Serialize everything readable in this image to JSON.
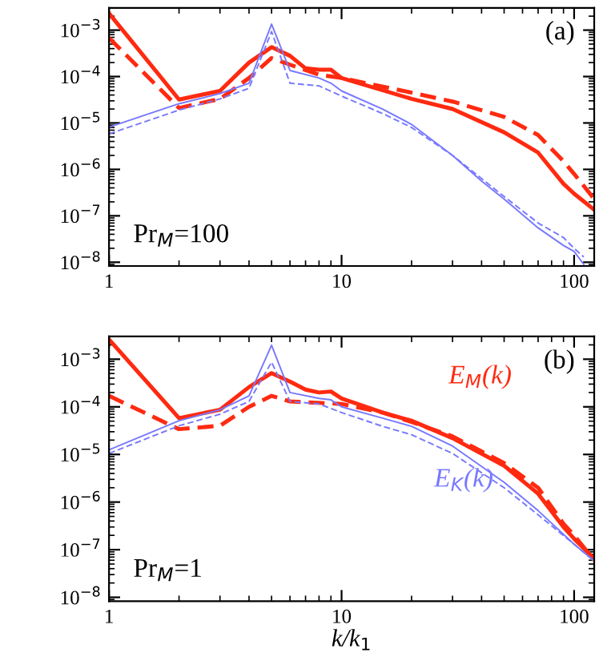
{
  "chart_data": [
    {
      "type": "line",
      "log": "xy",
      "xlim": [
        1,
        122
      ],
      "ylim": [
        8.3e-09,
        0.003
      ],
      "xticks": [
        1,
        10,
        100
      ],
      "yticks": [
        {
          "value": 1e-08,
          "label": "10$^{−8}$"
        },
        {
          "value": 1e-07,
          "label": "10$^{−7}$"
        },
        {
          "value": 1e-06,
          "label": "10$^{−6}$"
        },
        {
          "value": 1e-05,
          "label": "10$^{−5}$"
        },
        {
          "value": 0.0001,
          "label": "10$^{−4}$"
        },
        {
          "value": 0.001,
          "label": "10$^{−3}$"
        }
      ],
      "annotations": [
        "(a)",
        "Pr$_{M}$=100"
      ],
      "series": [
        {
          "color": "#ff2a10",
          "line_style": "solid",
          "x": [
            1,
            2,
            3,
            4,
            5,
            6,
            7,
            8,
            9,
            10,
            20,
            30,
            50,
            70,
            90,
            100,
            122
          ],
          "values": [
            0.0023,
            3.2e-05,
            4.9e-05,
            0.0002,
            0.00043,
            0.00028,
            0.00015,
            0.00014,
            0.00014,
            9.3e-05,
            3.3e-05,
            2e-05,
            6.3e-06,
            2.3e-06,
            4.9e-07,
            3e-07,
            1.35e-07
          ]
        },
        {
          "color": "#ff2a10",
          "line_style": "dashed",
          "x": [
            1,
            2,
            3,
            4,
            5,
            6,
            8,
            10,
            20,
            30,
            50,
            70,
            90,
            100,
            122
          ],
          "values": [
            0.00068,
            2.1e-05,
            3.3e-05,
            9.3e-05,
            0.00025,
            0.00018,
            0.00011,
            9.3e-05,
            4.5e-05,
            2.9e-05,
            1.35e-05,
            5.5e-06,
            1.5e-06,
            8e-07,
            2.3e-07
          ]
        },
        {
          "color": "#7878ff",
          "line_style": "solid",
          "x": [
            1,
            2,
            3,
            4,
            5,
            6,
            8,
            9,
            10,
            15,
            20,
            30,
            40,
            50,
            70,
            90,
            100,
            110
          ],
          "values": [
            8.1e-06,
            2.6e-05,
            4.3e-05,
            7.2e-05,
            0.00135,
            0.000135,
            9.3e-05,
            7.2e-05,
            4.9e-05,
            2e-05,
            9.3e-06,
            2e-06,
            5.6e-07,
            2.3e-07,
            5.5e-08,
            2.3e-08,
            1.7e-08,
            9e-09
          ]
        },
        {
          "color": "#7878ff",
          "line_style": "dashed",
          "x": [
            1,
            2,
            3,
            4,
            5,
            6,
            8,
            10,
            15,
            20,
            30,
            50,
            70,
            90,
            100,
            110
          ],
          "values": [
            5.8e-06,
            1.9e-05,
            3.3e-05,
            5.6e-05,
            0.00093,
            7.2e-05,
            6.3e-05,
            3.8e-05,
            1.6e-05,
            8e-06,
            2e-06,
            2.6e-07,
            7e-08,
            3.4e-08,
            2e-08,
            1.3e-08
          ]
        }
      ]
    },
    {
      "type": "line",
      "log": "xy",
      "xlim": [
        1,
        122
      ],
      "ylim": [
        8.3e-09,
        0.003
      ],
      "xticks": [
        1,
        10,
        100
      ],
      "xlabel": "k/k$_{1}$",
      "yticks": [
        {
          "value": 1e-08,
          "label": "10$^{−8}$"
        },
        {
          "value": 1e-07,
          "label": "10$^{−7}$"
        },
        {
          "value": 1e-06,
          "label": "10$^{−6}$"
        },
        {
          "value": 1e-05,
          "label": "10$^{−5}$"
        },
        {
          "value": 0.0001,
          "label": "10$^{−4}$"
        },
        {
          "value": 0.001,
          "label": "10$^{−3}$"
        }
      ],
      "annotations": [
        "(b)",
        "Pr$_{M}$=1"
      ],
      "series": [
        {
          "name": "E$_{M}$(k)",
          "color": "#ff2a10",
          "line_style": "solid",
          "x": [
            1,
            2,
            3,
            4,
            5,
            6,
            7,
            8,
            9,
            10,
            15,
            20,
            30,
            50,
            70,
            90,
            100,
            122
          ],
          "values": [
            0.0026,
            5.8e-05,
            8.7e-05,
            0.00026,
            0.00051,
            0.00034,
            0.00023,
            0.0002,
            0.00021,
            0.00015,
            7.6e-05,
            5.1e-05,
            2.2e-05,
            5.8e-06,
            1.5e-06,
            3e-07,
            1.7e-07,
            6.5e-08
          ]
        },
        {
          "color": "#ff2a10",
          "line_style": "dashed",
          "x": [
            1,
            2,
            3,
            4,
            5,
            6,
            10,
            15,
            20,
            30,
            50,
            70,
            90,
            100,
            122
          ],
          "values": [
            0.00017,
            3.4e-05,
            4e-05,
            0.0001,
            0.00017,
            0.00013,
            0.000115,
            7.6e-05,
            4.8e-05,
            2.4e-05,
            6.6e-06,
            2e-06,
            3.5e-07,
            2e-07,
            6e-08
          ]
        },
        {
          "name": "E$_{K}$(k)",
          "color": "#7878ff",
          "line_style": "solid",
          "x": [
            1,
            2,
            3,
            4,
            5,
            6,
            8,
            9,
            10,
            15,
            20,
            30,
            50,
            70,
            100,
            122
          ],
          "values": [
            1.25e-05,
            5.1e-05,
            8.7e-05,
            0.00017,
            0.00197,
            0.0002,
            0.00015,
            0.00014,
            0.0001,
            5.8e-05,
            3.9e-05,
            1.5e-05,
            2.6e-06,
            6.6e-07,
            1.3e-07,
            5.8e-08
          ]
        },
        {
          "color": "#7878ff",
          "line_style": "dashed",
          "x": [
            1,
            2,
            3,
            4,
            5,
            6,
            8,
            10,
            15,
            20,
            30,
            50,
            70,
            100,
            122
          ],
          "values": [
            1.05e-05,
            4e-05,
            7e-05,
            0.00013,
            0.00087,
            0.00013,
            0.000115,
            7.6e-05,
            3.9e-05,
            2.6e-05,
            1.05e-05,
            2e-06,
            5.4e-07,
            1.3e-07,
            5.8e-08
          ]
        }
      ]
    }
  ]
}
